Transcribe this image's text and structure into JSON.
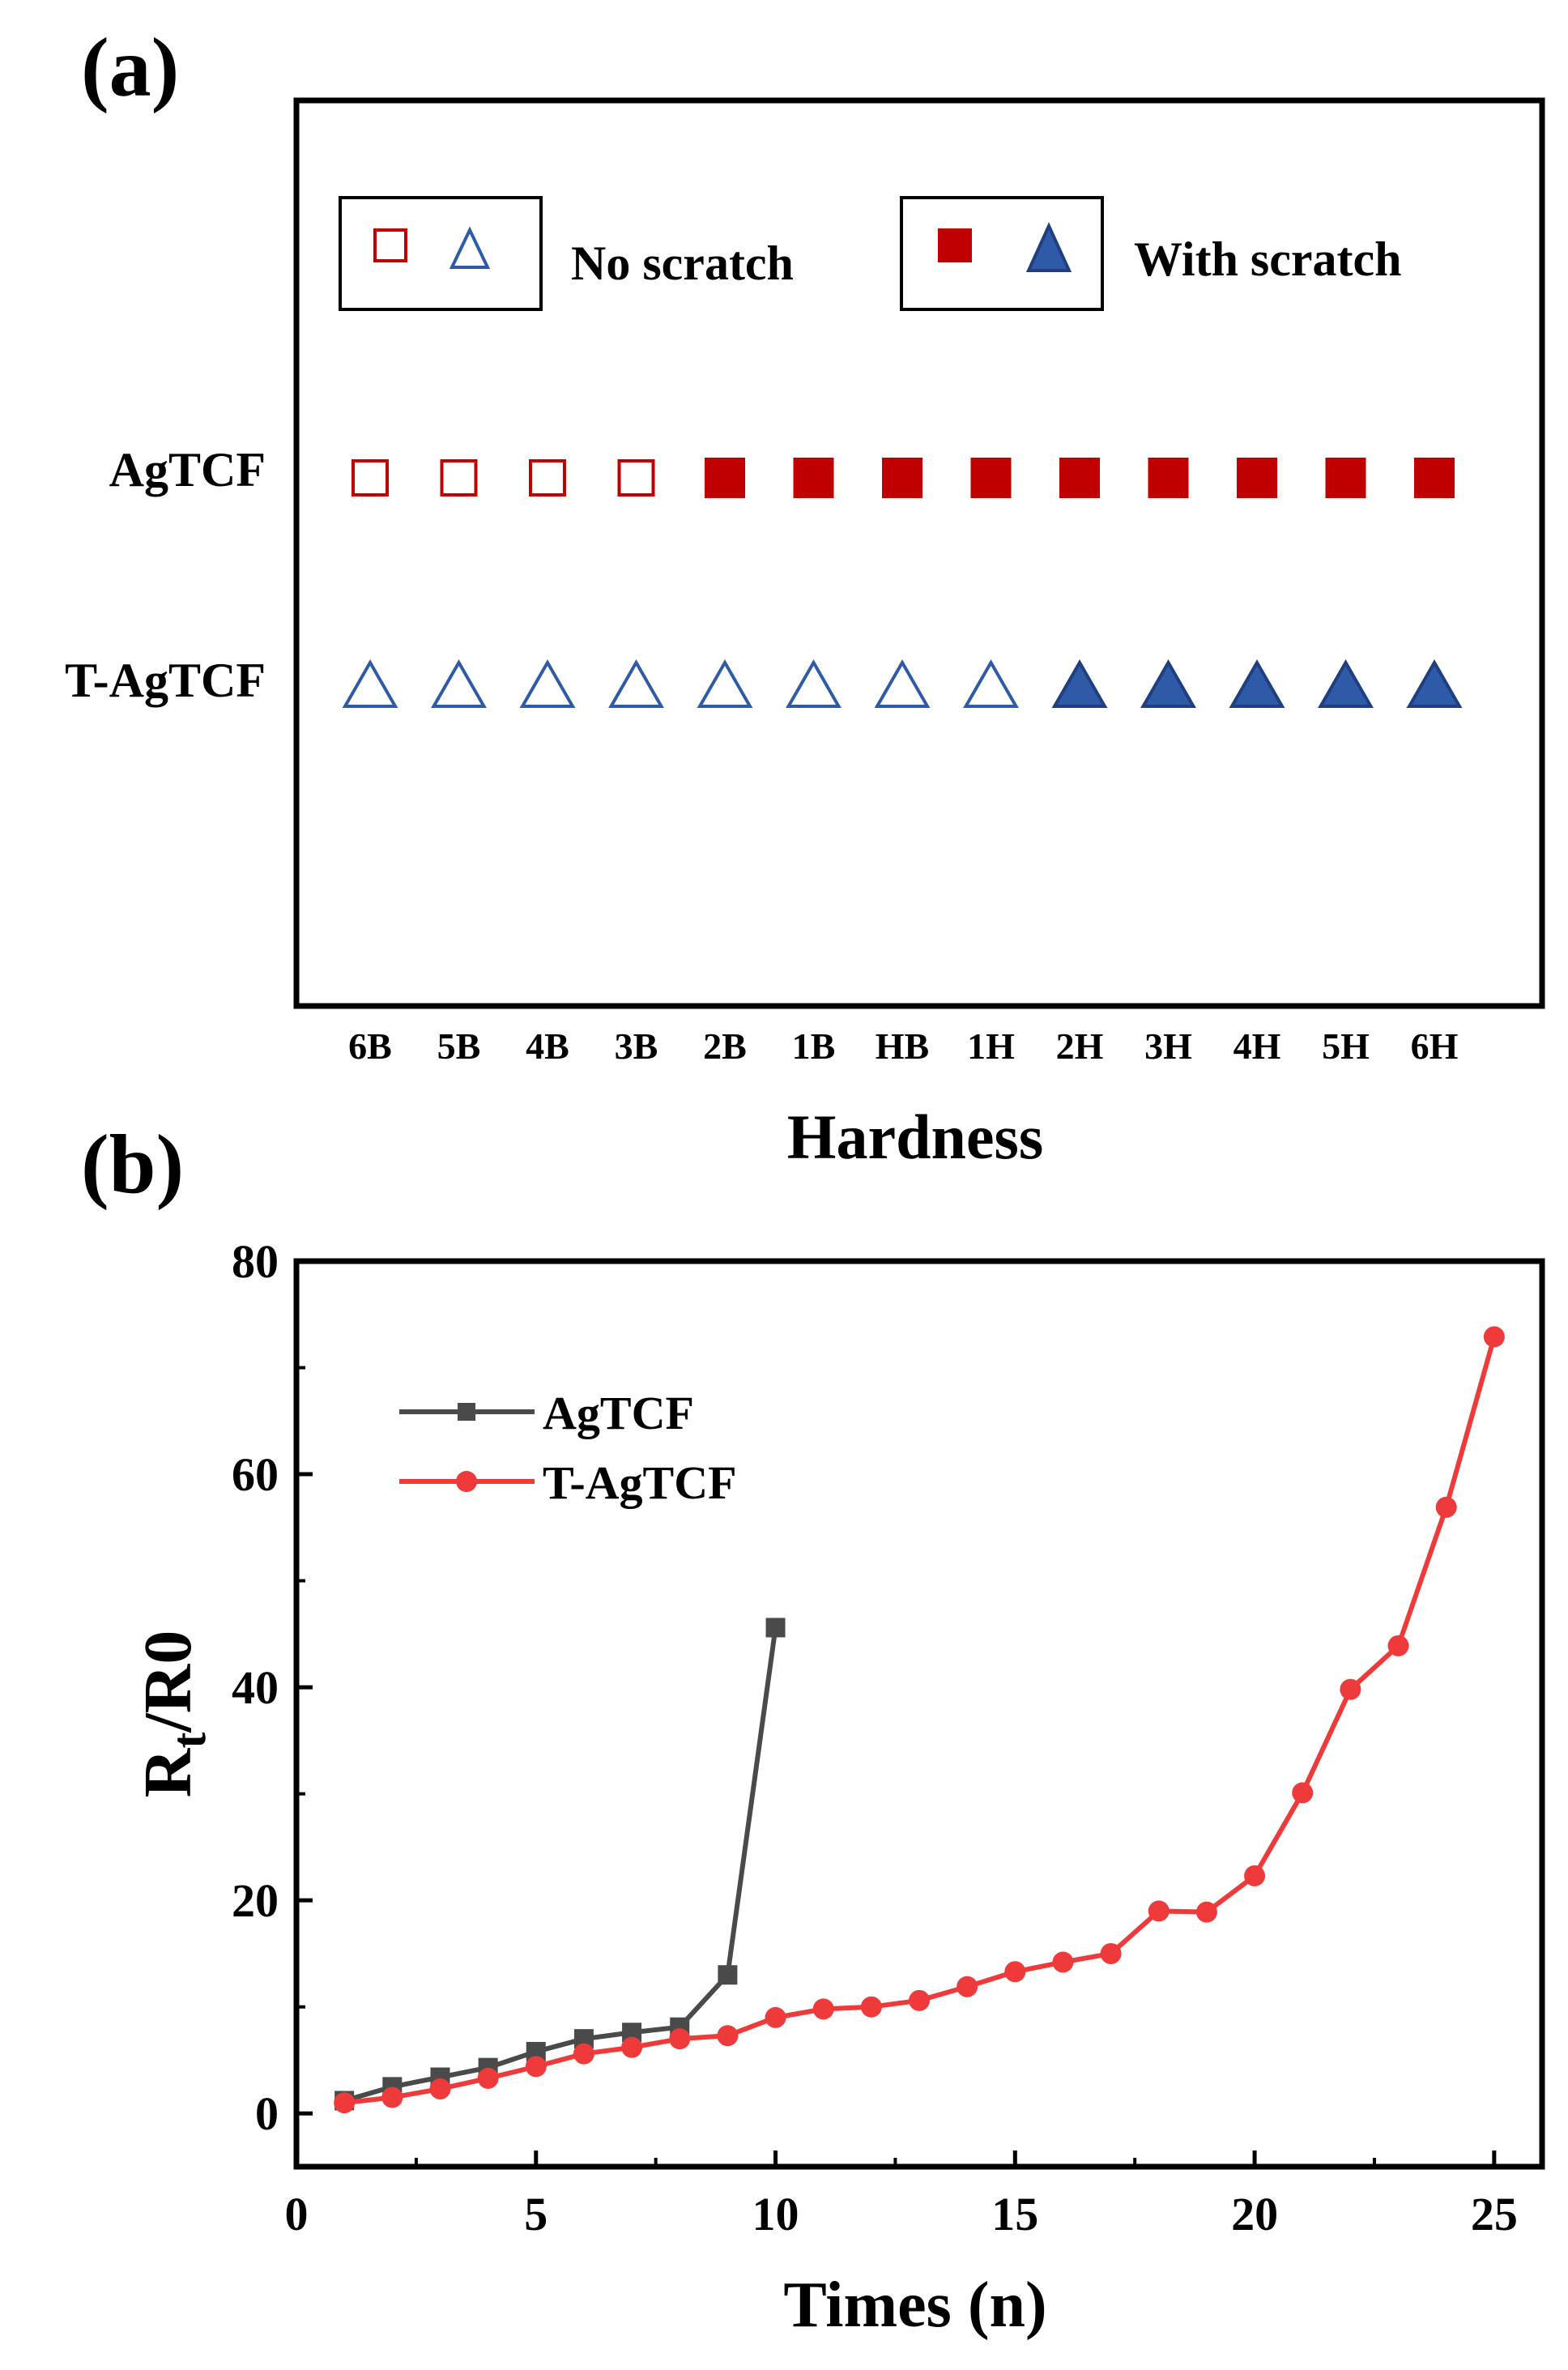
{
  "colors": {
    "red": "#c00000",
    "blue": "#2f5aa8",
    "gray": "#4a4a4a",
    "brightRed": "#ee3a3a"
  },
  "chart_data": [
    {
      "type": "scatter",
      "panel_label": "(a)",
      "xlabel": "Hardness",
      "categories": [
        "6B",
        "5B",
        "4B",
        "3B",
        "2B",
        "1B",
        "HB",
        "1H",
        "2H",
        "3H",
        "4H",
        "5H",
        "6H"
      ],
      "rows": [
        {
          "name": "AgTCF",
          "marker": "square",
          "color": "#c00000",
          "scratched": [
            false,
            false,
            false,
            false,
            true,
            true,
            true,
            true,
            true,
            true,
            true,
            true,
            true
          ]
        },
        {
          "name": "T-AgTCF",
          "marker": "triangle",
          "color": "#2f5aa8",
          "scratched": [
            false,
            false,
            false,
            false,
            false,
            false,
            false,
            false,
            true,
            true,
            true,
            true,
            true
          ]
        }
      ],
      "legend": [
        {
          "label": "No scratch",
          "filled": false
        },
        {
          "label": "With scratch",
          "filled": true
        }
      ]
    },
    {
      "type": "line",
      "panel_label": "(b)",
      "xlabel": "Times (n)",
      "ylabel_main": "R",
      "ylabel_sub": "t",
      "ylabel_rest": "/R0",
      "xlim": [
        0,
        26
      ],
      "ylim": [
        -5,
        80
      ],
      "xticks": [
        0,
        5,
        10,
        15,
        20,
        25
      ],
      "yticks": [
        0,
        20,
        40,
        60,
        80
      ],
      "legend_position": "top-left",
      "series": [
        {
          "name": "AgTCF",
          "marker": "square",
          "color": "#4a4a4a",
          "x": [
            1,
            2,
            3,
            4,
            5,
            6,
            7,
            8,
            9,
            10
          ],
          "y": [
            1.2,
            2.5,
            3.4,
            4.3,
            5.8,
            7.0,
            7.6,
            8.1,
            13.0,
            45.6
          ]
        },
        {
          "name": "T-AgTCF",
          "marker": "circle",
          "color": "#ee3a3a",
          "x": [
            1,
            2,
            3,
            4,
            5,
            6,
            7,
            8,
            9,
            10,
            11,
            12,
            13,
            14,
            15,
            16,
            17,
            18,
            19,
            20,
            21,
            22,
            23,
            24,
            25
          ],
          "y": [
            1.0,
            1.5,
            2.3,
            3.3,
            4.4,
            5.6,
            6.2,
            7.0,
            7.3,
            9.0,
            9.8,
            10.0,
            10.6,
            11.9,
            13.3,
            14.2,
            15.0,
            19.0,
            18.9,
            22.3,
            30.1,
            39.8,
            43.9,
            56.9,
            72.9
          ]
        }
      ]
    }
  ]
}
